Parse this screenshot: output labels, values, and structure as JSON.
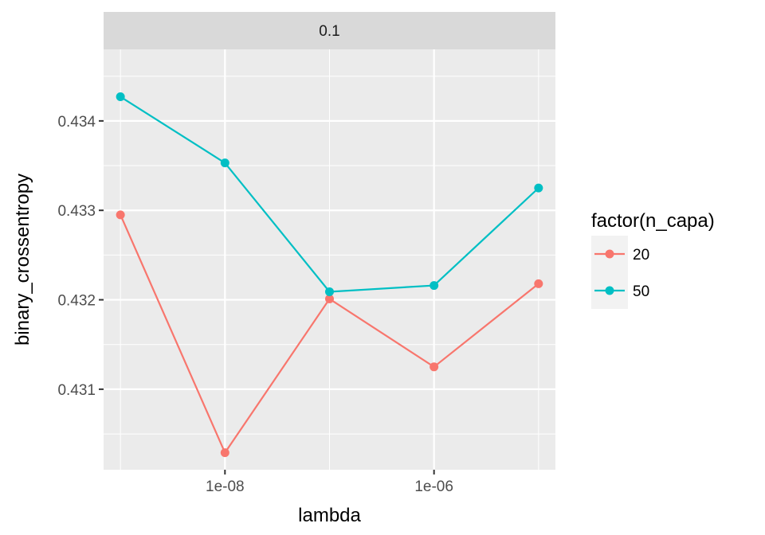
{
  "chart_data": {
    "type": "line",
    "facet_label": "0.1",
    "xlabel": "lambda",
    "ylabel": "binary_crossentropy",
    "x_scale": "log10",
    "x": [
      1e-09,
      1e-08,
      1e-07,
      1e-06,
      1e-05
    ],
    "x_tick_values": [
      1e-08,
      1e-06
    ],
    "x_tick_labels": [
      "1e-08",
      "1e-06"
    ],
    "y_tick_values": [
      0.431,
      0.432,
      0.433,
      0.434
    ],
    "y_tick_labels": [
      "0.431",
      "0.432",
      "0.433",
      "0.434"
    ],
    "xlim": [
      6.9e-10,
      1.45e-05
    ],
    "ylim": [
      0.4301,
      0.4348
    ],
    "grid": true,
    "legend_title": "factor(n_capa)",
    "legend_position": "right",
    "series": [
      {
        "name": "20",
        "color": "#F8766D",
        "values": [
          0.43295,
          0.43029,
          0.43201,
          0.43125,
          0.43218
        ]
      },
      {
        "name": "50",
        "color": "#00BFC4",
        "values": [
          0.43427,
          0.43353,
          0.43209,
          0.43216,
          0.43325
        ]
      }
    ]
  }
}
